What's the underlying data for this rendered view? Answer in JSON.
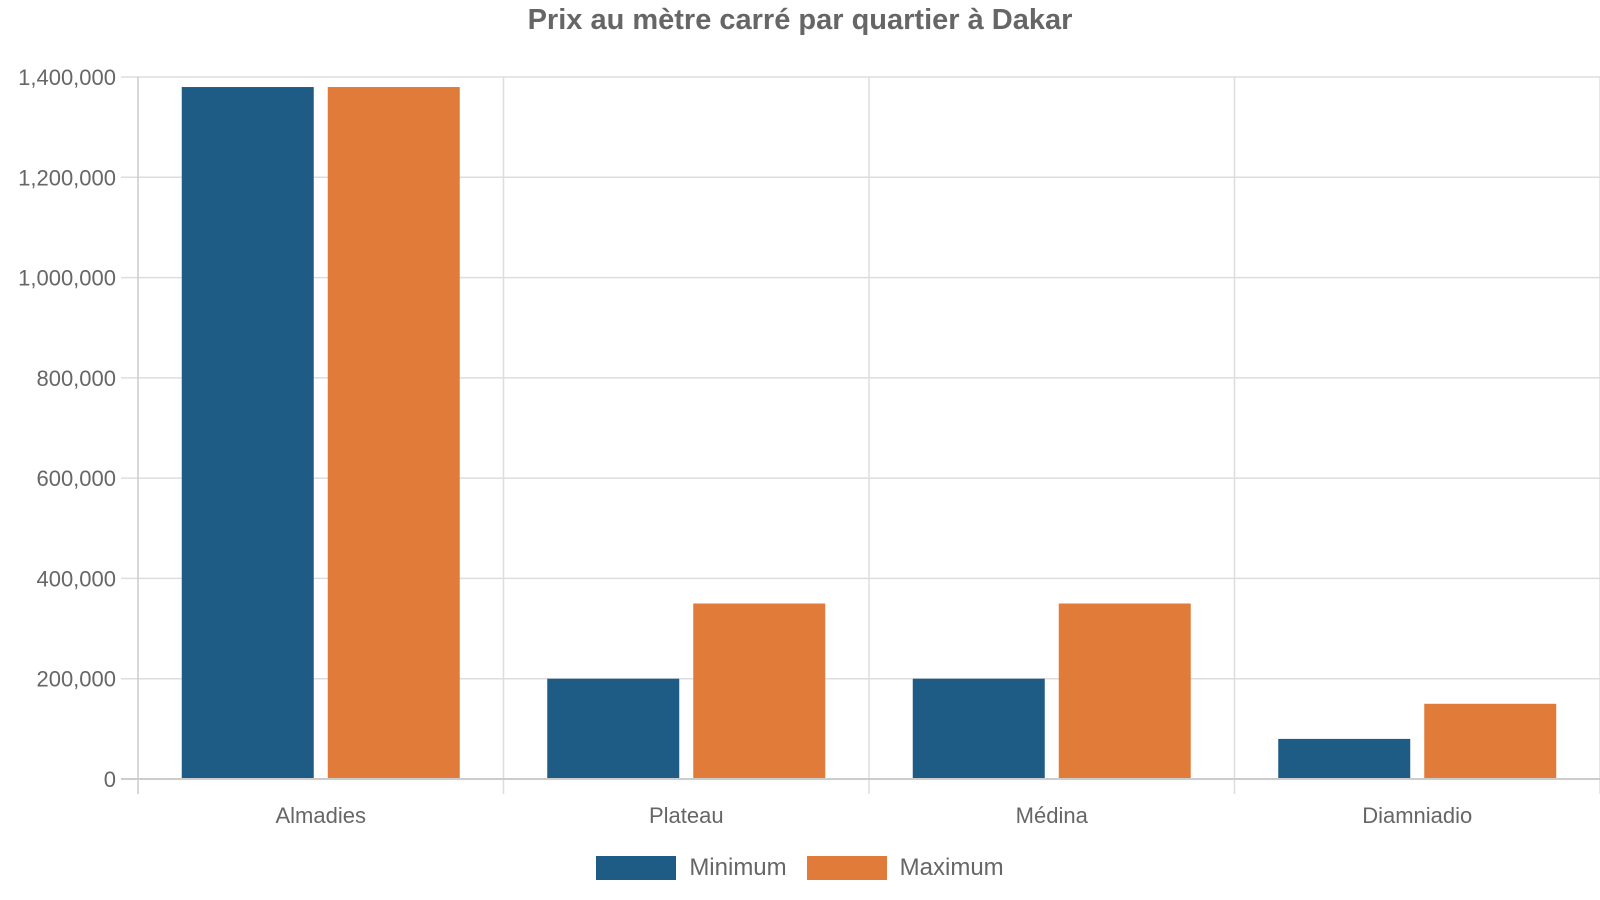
{
  "chart_data": {
    "type": "bar",
    "title": "Prix au mètre carré par quartier à Dakar",
    "xlabel": "",
    "ylabel": "",
    "categories": [
      "Almadies",
      "Plateau",
      "Médina",
      "Diamniadio"
    ],
    "series": [
      {
        "name": "Minimum",
        "color": "#1f5c85",
        "values": [
          1380000,
          200000,
          200000,
          80000
        ]
      },
      {
        "name": "Maximum",
        "color": "#e07b3a",
        "values": [
          1380000,
          350000,
          350000,
          150000
        ]
      }
    ],
    "ylim": [
      0,
      1400000
    ],
    "yticks": [
      0,
      200000,
      400000,
      600000,
      800000,
      1000000,
      1200000,
      1400000
    ],
    "ytick_labels": [
      "0",
      "200,000",
      "400,000",
      "600,000",
      "800,000",
      "1,000,000",
      "1,200,000",
      "1,400,000"
    ],
    "grid": true,
    "legend_position": "bottom"
  },
  "legend": {
    "items": [
      {
        "label": "Minimum",
        "color": "#1f5c85"
      },
      {
        "label": "Maximum",
        "color": "#e07b3a"
      }
    ]
  }
}
